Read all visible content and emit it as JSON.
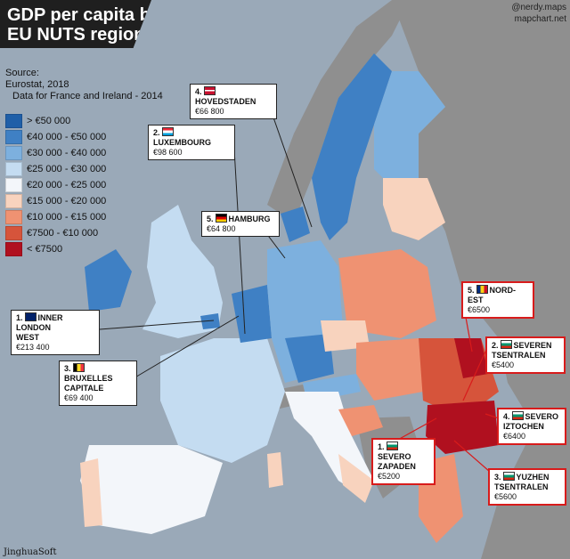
{
  "title": {
    "line1": "GDP per capita by",
    "line2": "EU NUTS region"
  },
  "watermark": {
    "handle": "@nerdy.maps",
    "site": "mapchart.net"
  },
  "source": {
    "label": "Source:",
    "line1": "Eurostat, 2018",
    "line2": "Data for France and Ireland - 2014"
  },
  "legend": [
    {
      "label": "> €50 000",
      "color": "#1f5fa8"
    },
    {
      "label": "€40 000 - €50 000",
      "color": "#3f80c4"
    },
    {
      "label": "€30 000 - €40 000",
      "color": "#7db0de"
    },
    {
      "label": "€25 000 - €30 000",
      "color": "#c4dcf1"
    },
    {
      "label": "€20 000 - €25 000",
      "color": "#f3f6fa"
    },
    {
      "label": "€15 000 - €20 000",
      "color": "#f8d3be"
    },
    {
      "label": "€10 000 - €15 000",
      "color": "#ef9272"
    },
    {
      "label": "€7500 - €10 000",
      "color": "#d6543b"
    },
    {
      "label": "< €7500",
      "color": "#b0101f"
    }
  ],
  "callouts": {
    "hovedstaden": {
      "num": "4.",
      "name": "HOVEDSTADEN",
      "value": "€66 800"
    },
    "luxembourg": {
      "num": "2.",
      "name": "LUXEMBOURG",
      "value": "€98 600"
    },
    "hamburg": {
      "num": "5.",
      "name": "HAMBURG",
      "value": "€64 800"
    },
    "inner_london": {
      "num": "1.",
      "name1": "INNER LONDON",
      "name2": "WEST",
      "value": "€213 400"
    },
    "bruxelles": {
      "num": "3.",
      "name1": "BRUXELLES",
      "name2": "CAPITALE",
      "value": "€69 400"
    },
    "nord_est": {
      "num": "5.",
      "name": "NORD-EST",
      "value": "€6500"
    },
    "severen_tsentralen": {
      "num": "2.",
      "name1": "SEVEREN",
      "name2": "TSENTRALEN",
      "value": "€5400"
    },
    "severo_iztochen": {
      "num": "4.",
      "name1": "SEVERO",
      "name2": "IZTOCHEN",
      "value": "€6400"
    },
    "severo_zapaden": {
      "num": "1.",
      "name1": "SEVERO",
      "name2": "ZAPADEN",
      "value": "€5200"
    },
    "yuzhen_tsentralen": {
      "num": "3.",
      "name1": "YUZHEN",
      "name2": "TSENTRALEN",
      "value": "€5600"
    }
  },
  "credit": "JinghuaSoft"
}
